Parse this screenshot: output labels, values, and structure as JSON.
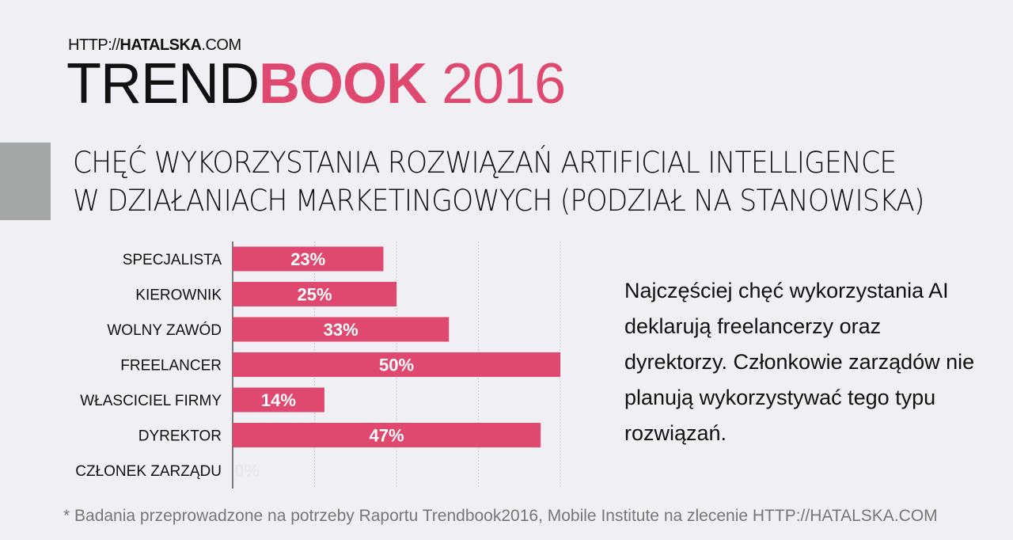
{
  "header": {
    "site_prefix": "HTTP://",
    "site_bold": "HATALSKA",
    "site_suffix": ".COM",
    "brand_light": "TREND",
    "brand_bold": "BOOK",
    "brand_year": "2016"
  },
  "colors": {
    "accent": "#e0496f",
    "background": "#efeff4",
    "grey_block": "#a4a7a6"
  },
  "chart_data": {
    "type": "bar",
    "orientation": "horizontal",
    "title": "CHĘĆ WYKORZYSTANIA ROZWIĄZAŃ ARTIFICIAL INTELLIGENCE W DZIAŁANIACH MARKETINGOWYCH (PODZIAŁ NA STANOWISKA)",
    "title_lines": [
      "CHĘĆ WYKORZYSTANIA ROZWIĄZAŃ ARTIFICIAL INTELLIGENCE",
      "W DZIAŁANIACH MARKETINGOWYCH (PODZIAŁ NA STANOWISKA)"
    ],
    "categories": [
      "SPECJALISTA",
      "KIEROWNIK",
      "WOLNY ZAWÓD",
      "FREELANCER",
      "WŁASCICIEL FIRMY",
      "DYREKTOR",
      "CZŁONEK ZARZĄDU"
    ],
    "values": [
      23,
      25,
      33,
      50,
      14,
      47,
      0
    ],
    "labels": [
      "23%",
      "25%",
      "33%",
      "50%",
      "14%",
      "47%",
      "0%"
    ],
    "xlim": [
      0,
      50
    ],
    "gridlines": [
      12.5,
      25,
      37.5,
      50
    ],
    "xlabel": "",
    "ylabel": "",
    "grid": true
  },
  "note": "Najczęściej chęć wykorzystania AI deklarują freelancerzy oraz dyrektorzy. Członkowie zarządów nie planują wykorzystywać tego typu rozwiązań.",
  "footnote": "* Badania przeprowadzone na potrzeby Raportu Trendbook2016, Mobile Institute na zlecenie HTTP://HATALSKA.COM"
}
